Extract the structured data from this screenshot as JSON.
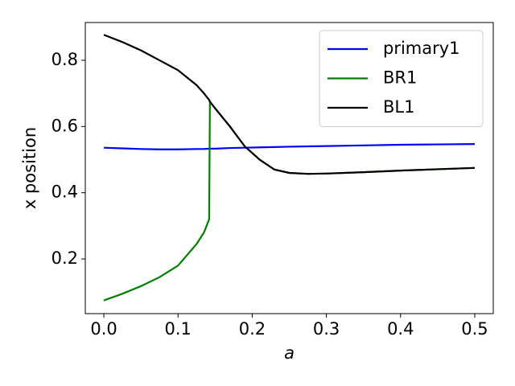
{
  "chart_data": {
    "type": "line",
    "x": [
      0,
      0.025,
      0.05,
      0.075,
      0.1,
      0.125,
      0.135,
      0.142,
      0.143,
      0.15,
      0.17,
      0.19,
      0.21,
      0.23,
      0.25,
      0.275,
      0.3,
      0.35,
      0.4,
      0.45,
      0.5
    ],
    "series": [
      {
        "name": "primary1",
        "color": "#0000ff",
        "values": [
          0.536,
          0.534,
          0.532,
          0.531,
          0.531,
          0.532,
          0.532,
          0.533,
          0.533,
          0.533,
          0.535,
          0.536,
          0.537,
          0.538,
          0.539,
          0.54,
          0.541,
          0.543,
          0.545,
          0.546,
          0.547
        ]
      },
      {
        "name": "BR1",
        "color": "#008000",
        "values": [
          0.075,
          0.095,
          0.118,
          0.145,
          0.18,
          0.245,
          0.28,
          0.32,
          0.675,
          0.655,
          0.6,
          0.54,
          0.5,
          0.47,
          0.46,
          0.457,
          0.458,
          0.462,
          0.467,
          0.471,
          0.475
        ]
      },
      {
        "name": "BL1",
        "color": "#000000",
        "values": [
          0.877,
          0.855,
          0.83,
          0.8,
          0.77,
          0.725,
          0.7,
          0.68,
          0.675,
          0.655,
          0.6,
          0.54,
          0.5,
          0.47,
          0.46,
          0.457,
          0.458,
          0.462,
          0.467,
          0.471,
          0.475
        ]
      }
    ],
    "xlabel": "a",
    "ylabel": "x position",
    "xlim": [
      -0.025,
      0.525
    ],
    "xticks": [
      {
        "value": 0,
        "label": "0.0"
      },
      0.1,
      0.2,
      0.3,
      0.4,
      0.5
    ],
    "ylim": [
      0.035,
      0.914
    ],
    "yticks": [
      0.2,
      0.4,
      0.6,
      0.8
    ],
    "legend": "upper-right"
  }
}
